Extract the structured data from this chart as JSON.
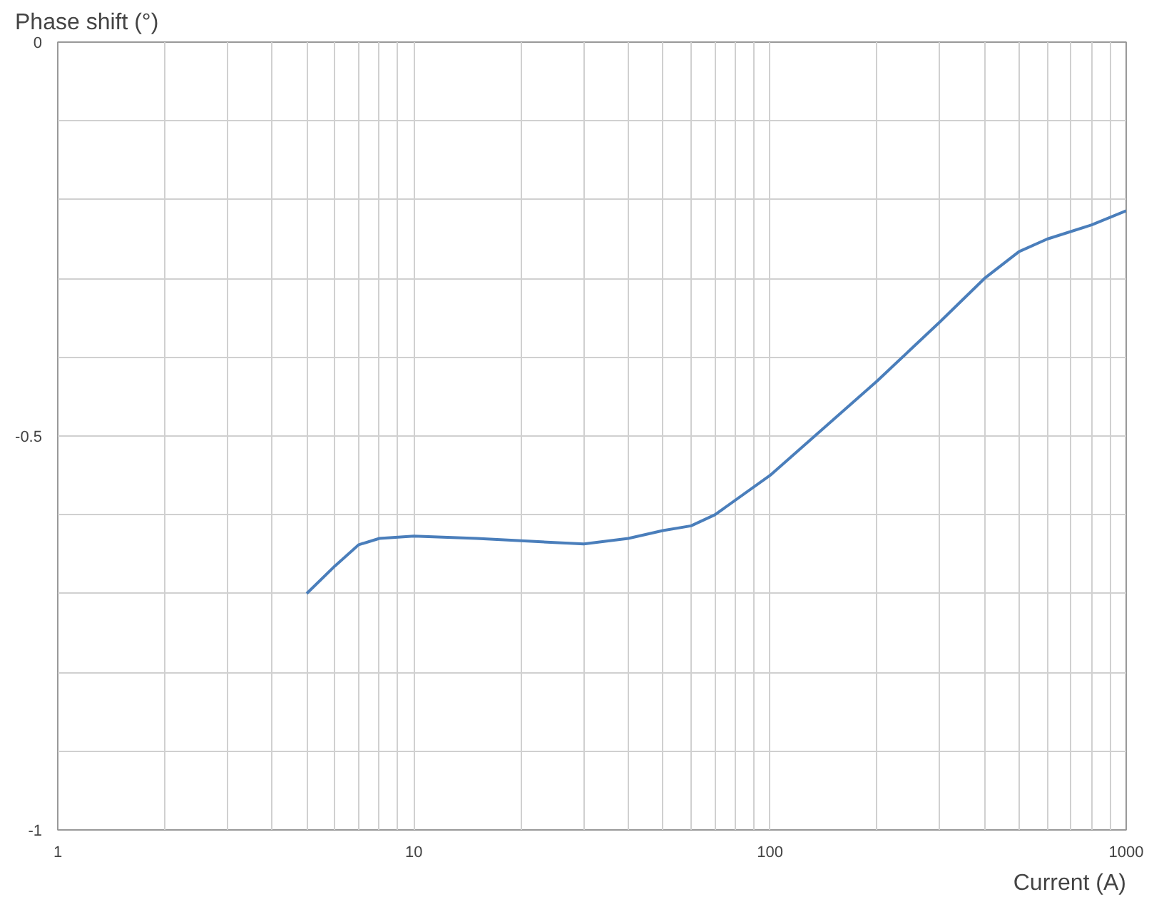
{
  "chart_data": {
    "type": "line",
    "xlabel": "Current (A)",
    "ylabel": "Phase shift (°)",
    "log": "x",
    "grid": true,
    "marker": "none",
    "line_style": "solid",
    "xlim": [
      1,
      1000
    ],
    "ylim": [
      -1,
      0
    ],
    "xticks": [
      1,
      {
        "value": 2,
        "label": null
      },
      {
        "value": 3,
        "label": null
      },
      {
        "value": 4,
        "label": null
      },
      {
        "value": 5,
        "label": null
      },
      {
        "value": 6,
        "label": null
      },
      {
        "value": 7,
        "label": null
      },
      {
        "value": 8,
        "label": null
      },
      {
        "value": 9,
        "label": null
      },
      10,
      {
        "value": 20,
        "label": null
      },
      {
        "value": 30,
        "label": null
      },
      {
        "value": 40,
        "label": null
      },
      {
        "value": 50,
        "label": null
      },
      {
        "value": 60,
        "label": null
      },
      {
        "value": 70,
        "label": null
      },
      {
        "value": 80,
        "label": null
      },
      {
        "value": 90,
        "label": null
      },
      100,
      {
        "value": 200,
        "label": null
      },
      {
        "value": 300,
        "label": null
      },
      {
        "value": 400,
        "label": null
      },
      {
        "value": 500,
        "label": null
      },
      {
        "value": 600,
        "label": null
      },
      {
        "value": 700,
        "label": null
      },
      {
        "value": 800,
        "label": null
      },
      {
        "value": 900,
        "label": null
      },
      1000
    ],
    "yticks": [
      -1,
      {
        "value": -0.9,
        "label": null
      },
      {
        "value": -0.8,
        "label": null
      },
      {
        "value": -0.7,
        "label": null
      },
      {
        "value": -0.6,
        "label": null
      },
      -0.5,
      {
        "value": -0.4,
        "label": null
      },
      {
        "value": -0.3,
        "label": null
      },
      {
        "value": -0.2,
        "label": null
      },
      {
        "value": -0.1,
        "label": null
      },
      0
    ],
    "x": [
      5,
      6,
      7,
      8,
      10,
      15,
      20,
      30,
      40,
      50,
      60,
      70,
      100,
      200,
      300,
      400,
      500,
      600,
      800,
      1000
    ],
    "series": [
      {
        "color": "#4a7ebb",
        "values": [
          -0.7,
          -0.665,
          -0.638,
          -0.63,
          -0.627,
          -0.63,
          -0.633,
          -0.637,
          -0.63,
          -0.62,
          -0.614,
          -0.6,
          -0.55,
          -0.43,
          -0.355,
          -0.3,
          -0.266,
          -0.25,
          -0.232,
          -0.214
        ]
      }
    ]
  }
}
